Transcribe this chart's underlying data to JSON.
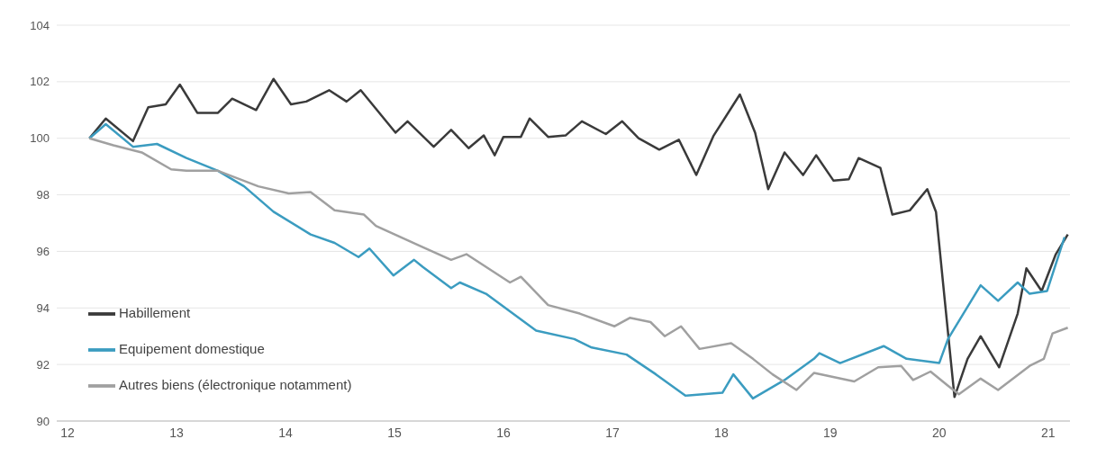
{
  "chart_data": {
    "type": "line",
    "xlim": [
      11.9,
      21.2
    ],
    "xticks": [
      12,
      13,
      14,
      15,
      16,
      17,
      18,
      19,
      20,
      21
    ],
    "ylim": [
      90,
      104
    ],
    "yticks": [
      90,
      92,
      94,
      96,
      98,
      100,
      102,
      104
    ],
    "grid": "y",
    "legend": "bottom left",
    "marker": "none",
    "line_style": "solid",
    "series": [
      {
        "name": "Habillement",
        "color": "#3a3a3a",
        "x": [
          12.2,
          12.35,
          12.6,
          12.74,
          12.9,
          13.03,
          13.19,
          13.38,
          13.51,
          13.73,
          13.89,
          14.05,
          14.19,
          14.4,
          14.56,
          14.69,
          15.01,
          15.12,
          15.36,
          15.52,
          15.68,
          15.82,
          15.92,
          16.0,
          16.16,
          16.24,
          16.41,
          16.57,
          16.72,
          16.94,
          17.09,
          17.24,
          17.43,
          17.61,
          17.77,
          17.93,
          18.17,
          18.31,
          18.43,
          18.58,
          18.75,
          18.87,
          19.03,
          19.17,
          19.26,
          19.46,
          19.57,
          19.73,
          19.89,
          19.97,
          20.05,
          20.14,
          20.26,
          20.38,
          20.55,
          20.72,
          20.8,
          20.94,
          21.07,
          21.18
        ],
        "values": [
          100.0,
          100.7,
          99.9,
          101.1,
          101.2,
          101.9,
          100.9,
          100.9,
          101.4,
          101.0,
          102.1,
          101.2,
          101.3,
          101.7,
          101.3,
          101.7,
          100.2,
          100.6,
          99.7,
          100.3,
          99.65,
          100.1,
          99.4,
          100.05,
          100.05,
          100.7,
          100.05,
          100.1,
          100.6,
          100.15,
          100.6,
          100.0,
          99.6,
          99.95,
          98.7,
          100.1,
          101.55,
          100.2,
          98.2,
          99.5,
          98.7,
          99.4,
          98.5,
          98.55,
          99.3,
          98.95,
          97.3,
          97.45,
          98.2,
          97.4,
          94.3,
          90.85,
          92.2,
          93.0,
          91.9,
          93.8,
          95.4,
          94.6,
          95.9,
          96.6
        ]
      },
      {
        "name": "Equipement domestique",
        "color": "#3b9cc0",
        "x": [
          12.2,
          12.35,
          12.6,
          12.82,
          13.09,
          13.38,
          13.62,
          13.89,
          14.23,
          14.45,
          14.67,
          14.77,
          14.99,
          15.18,
          15.26,
          15.52,
          15.6,
          15.84,
          16.3,
          16.65,
          16.81,
          17.13,
          17.4,
          17.67,
          18.01,
          18.11,
          18.29,
          18.58,
          18.85,
          18.9,
          19.09,
          19.49,
          19.7,
          20.0,
          20.08,
          20.38,
          20.54,
          20.72,
          20.83,
          20.99,
          21.15
        ],
        "values": [
          100.0,
          100.5,
          99.7,
          99.8,
          99.3,
          98.85,
          98.3,
          97.4,
          96.6,
          96.3,
          95.8,
          96.1,
          95.15,
          95.7,
          95.45,
          94.7,
          94.9,
          94.5,
          93.2,
          92.9,
          92.6,
          92.35,
          91.65,
          90.9,
          91.0,
          91.65,
          90.8,
          91.45,
          92.2,
          92.4,
          92.05,
          92.65,
          92.2,
          92.05,
          92.9,
          94.8,
          94.25,
          94.9,
          94.5,
          94.6,
          96.5
        ]
      },
      {
        "name": "Autres biens (électronique notamment)",
        "color": "#a0a0a0",
        "x": [
          12.2,
          12.42,
          12.68,
          12.95,
          13.09,
          13.38,
          13.75,
          14.03,
          14.23,
          14.45,
          14.72,
          14.83,
          15.23,
          15.52,
          15.66,
          16.06,
          16.16,
          16.41,
          16.7,
          17.02,
          17.16,
          17.35,
          17.48,
          17.63,
          17.8,
          18.09,
          18.29,
          18.47,
          18.69,
          18.85,
          19.22,
          19.44,
          19.65,
          19.76,
          19.92,
          20.08,
          20.18,
          20.38,
          20.54,
          20.83,
          20.96,
          21.04,
          21.18
        ],
        "values": [
          100.0,
          99.75,
          99.5,
          98.9,
          98.85,
          98.85,
          98.3,
          98.05,
          98.1,
          97.45,
          97.3,
          96.9,
          96.2,
          95.7,
          95.9,
          94.9,
          95.1,
          94.1,
          93.8,
          93.35,
          93.65,
          93.5,
          93.0,
          93.35,
          92.55,
          92.75,
          92.2,
          91.65,
          91.1,
          91.7,
          91.4,
          91.9,
          91.95,
          91.45,
          91.75,
          91.25,
          90.95,
          91.5,
          91.1,
          91.95,
          92.2,
          93.1,
          93.3
        ]
      }
    ]
  }
}
